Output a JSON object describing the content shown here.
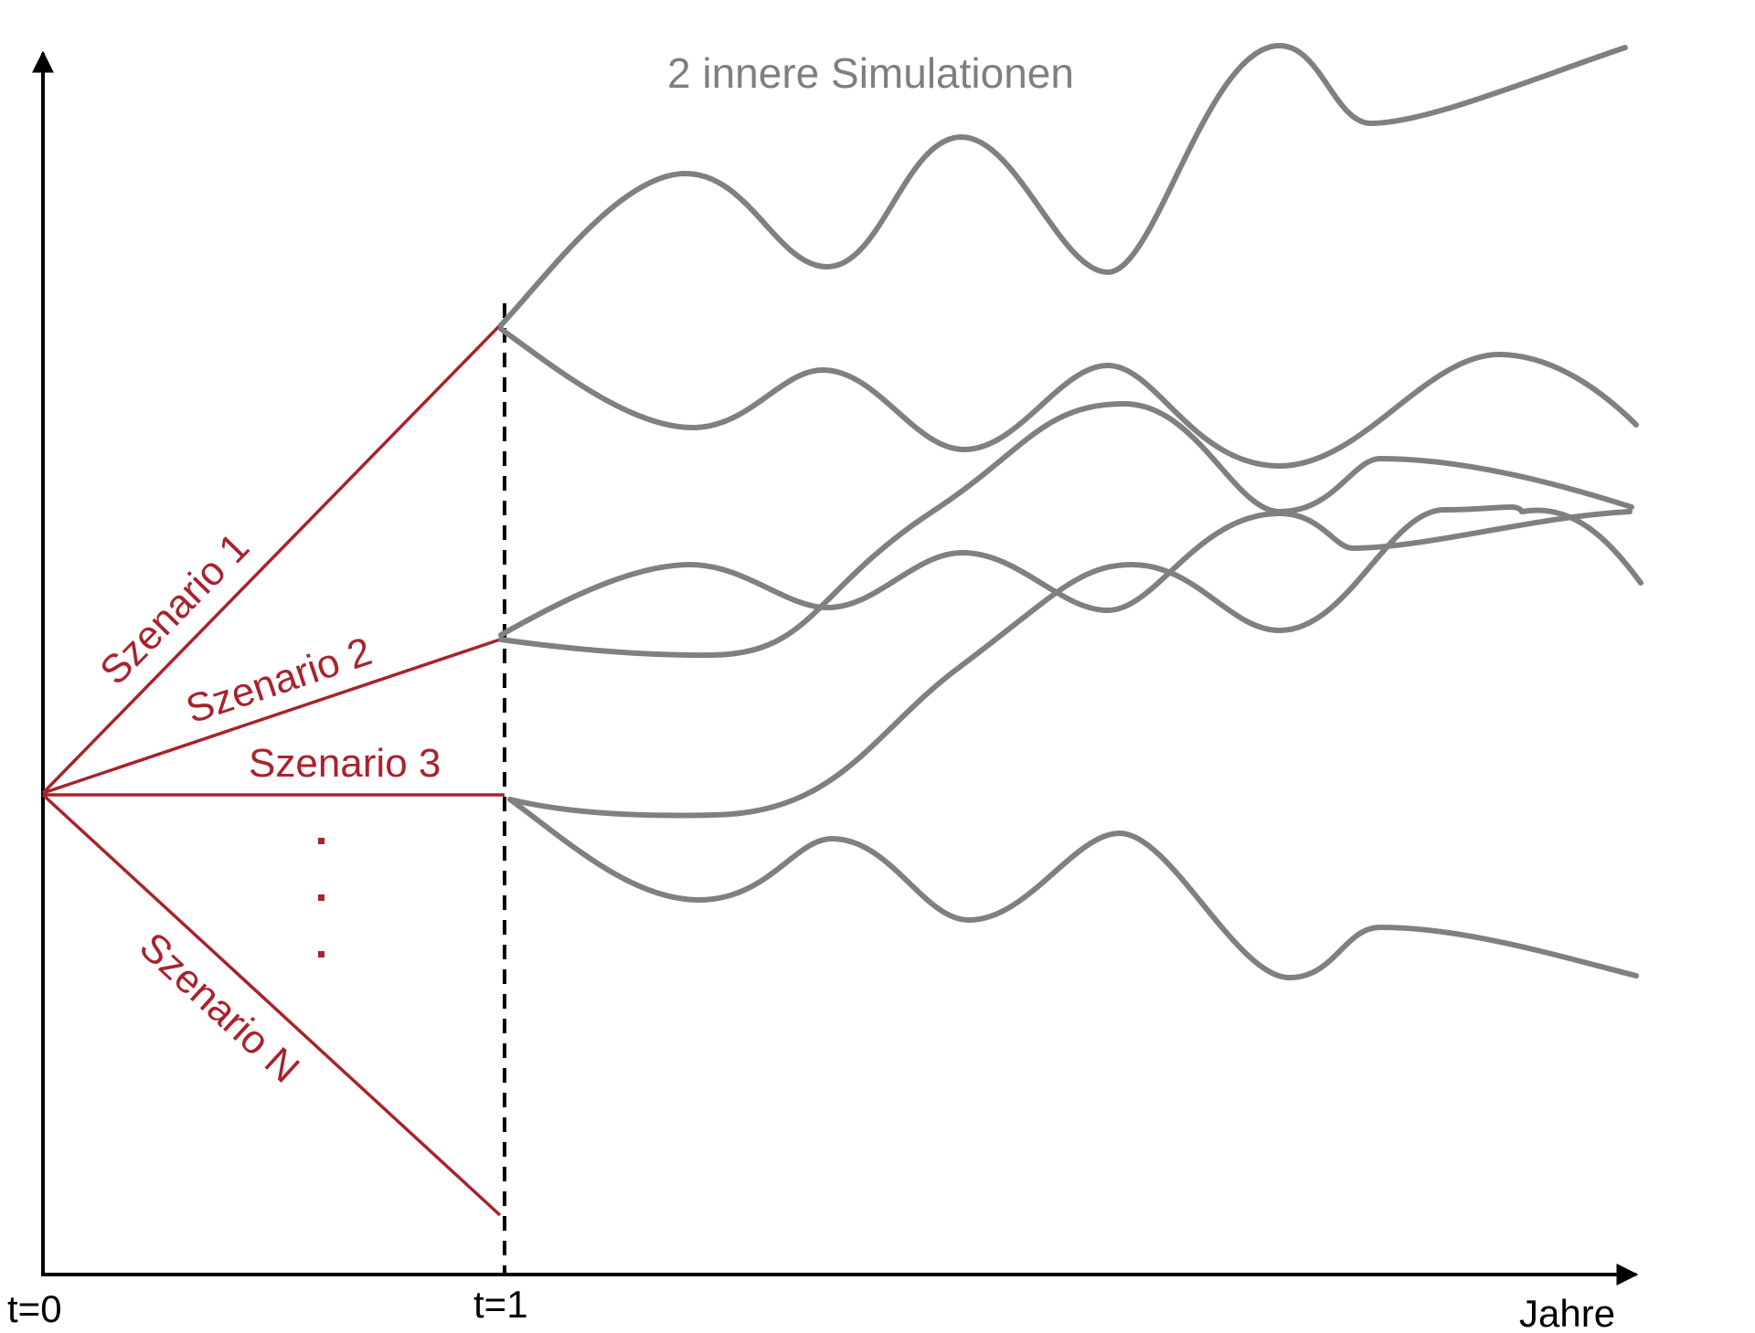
{
  "diagram": {
    "title": "2 innere Simulationen",
    "x_axis_label": "Jahre",
    "ticks": {
      "t0": "t=0",
      "t1": "t=1"
    },
    "scenarios": [
      {
        "id": "1",
        "label": "Szenario 1"
      },
      {
        "id": "2",
        "label": "Szenario 2"
      },
      {
        "id": "3",
        "label": "Szenario 3"
      },
      {
        "id": "n",
        "label": "Szenario N"
      }
    ],
    "ellipsis": "...",
    "colors": {
      "scenario": "#a8232d",
      "simulation": "#808080",
      "axis": "#000000",
      "title": "#7f7f7f"
    }
  }
}
